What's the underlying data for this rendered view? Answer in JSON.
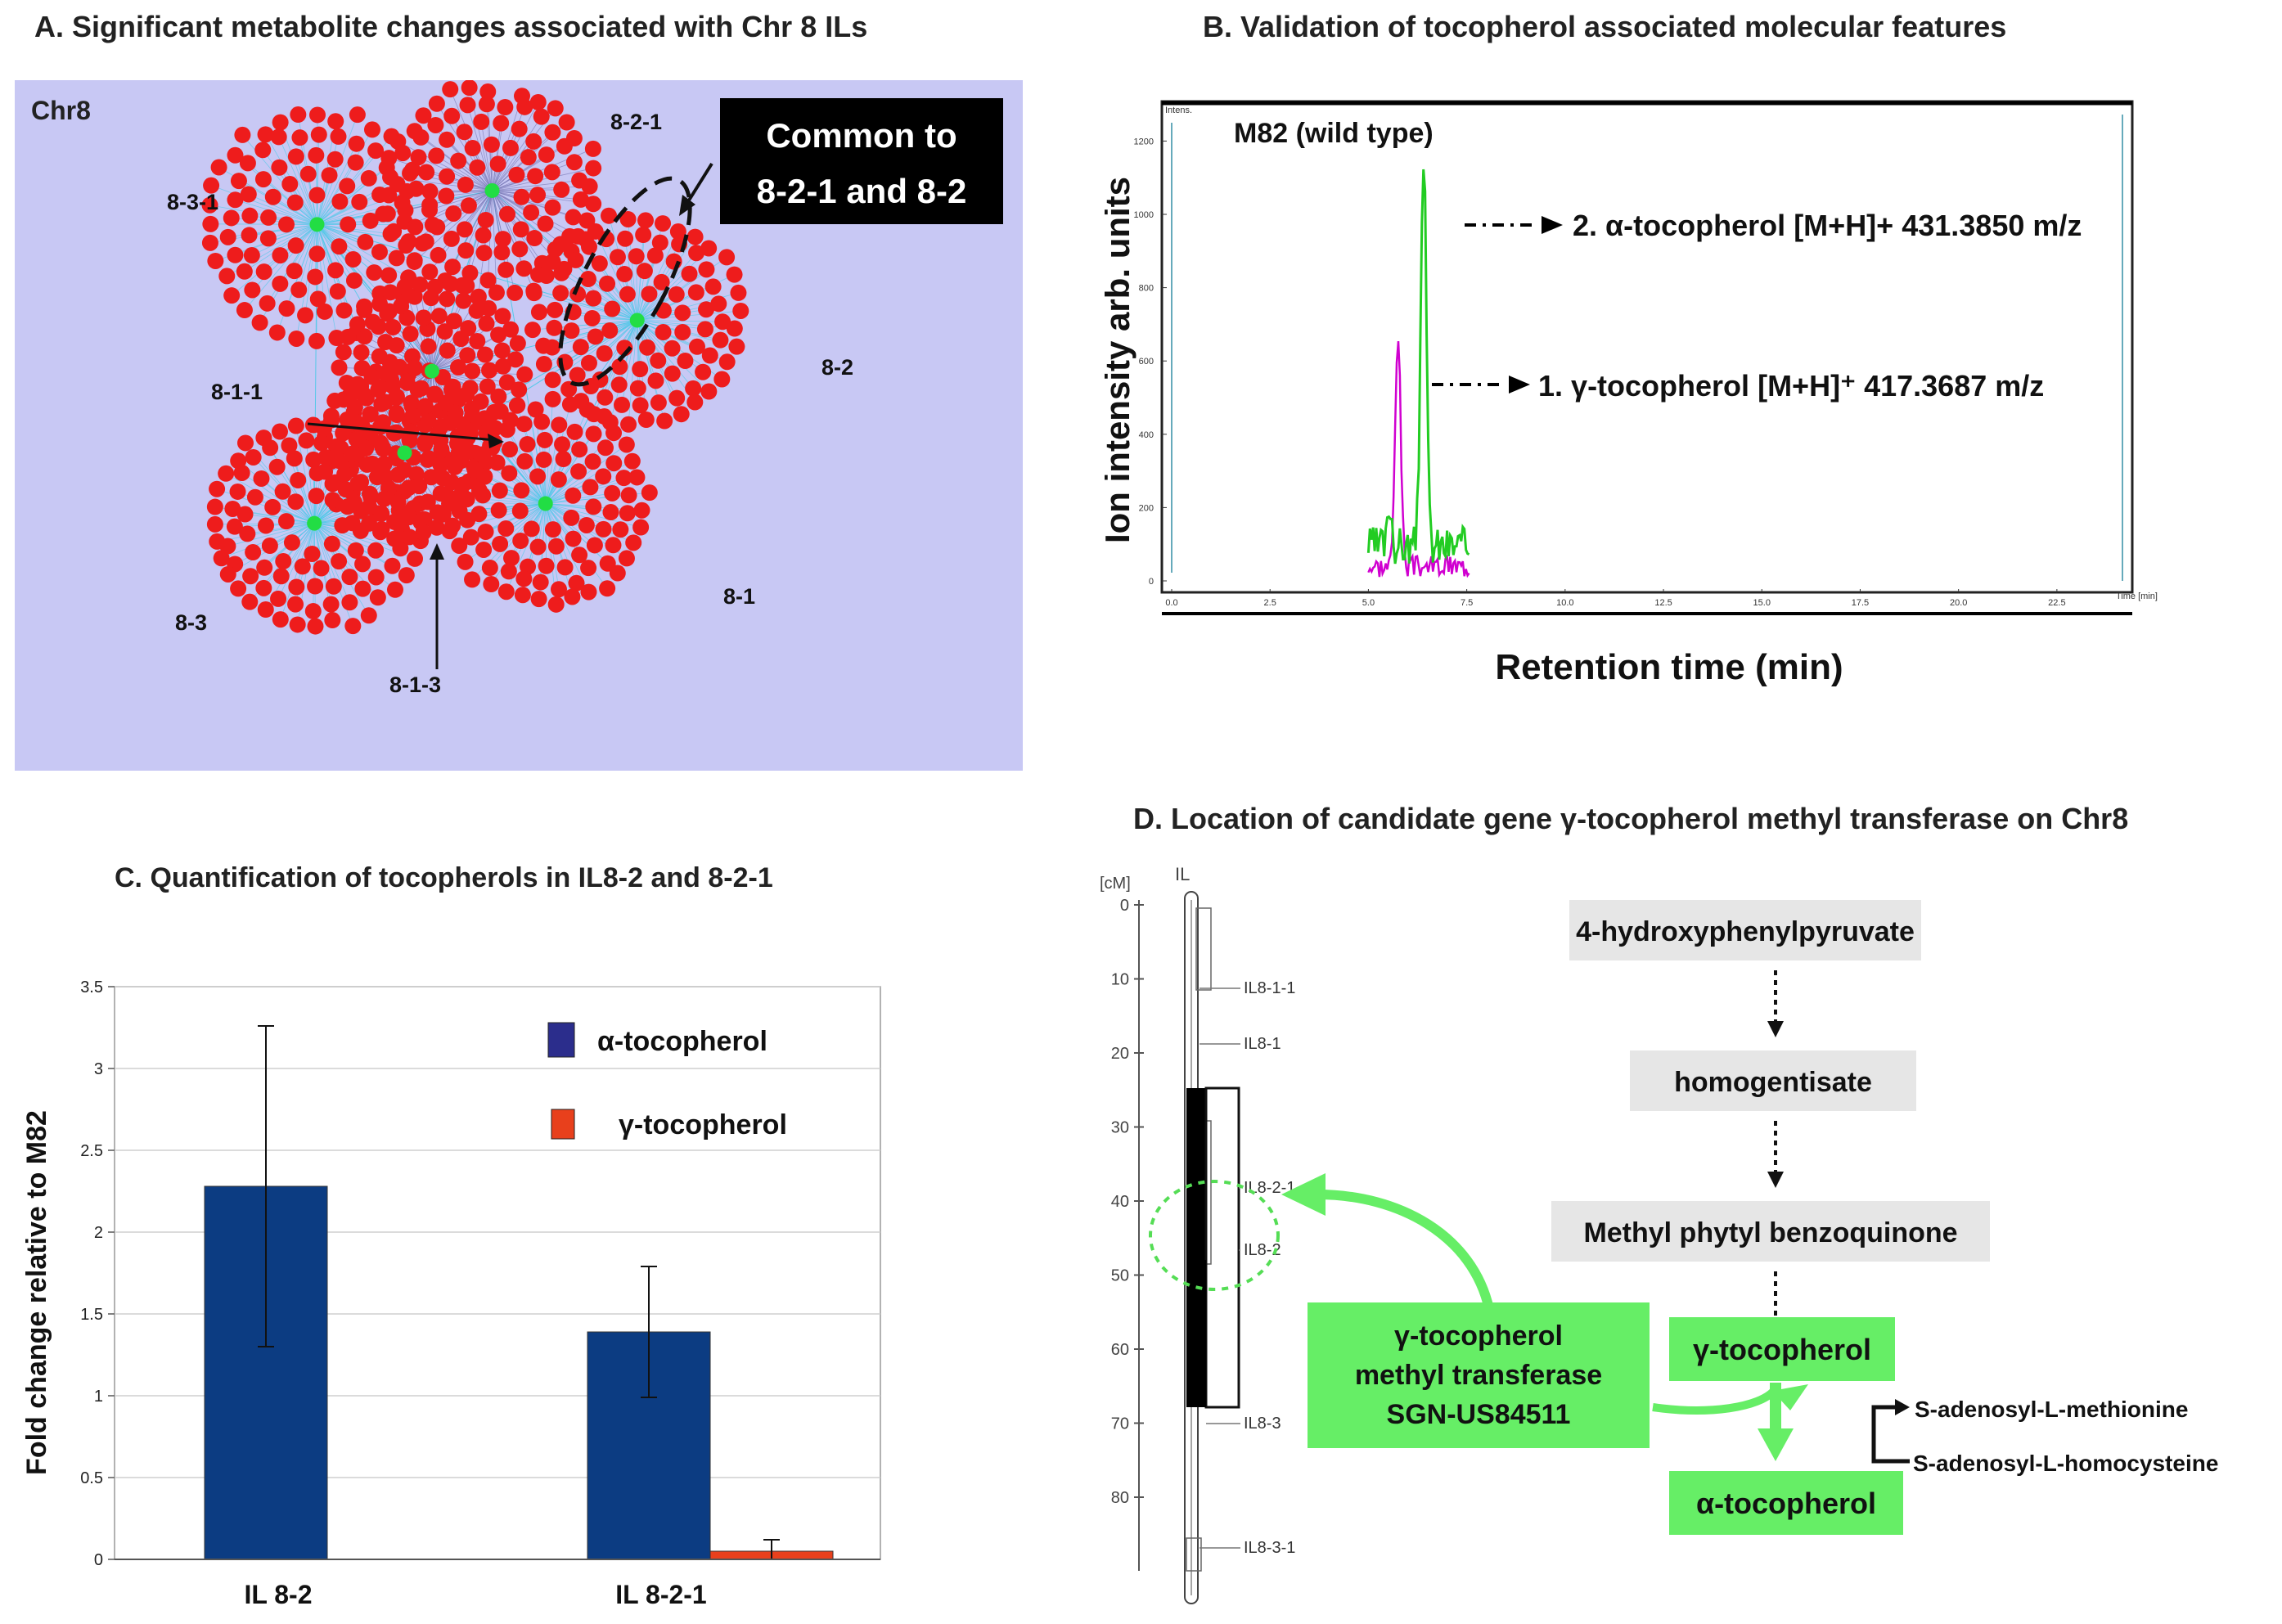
{
  "panels": {
    "a": {
      "title": "A.  Significant metabolite changes associated with Chr 8 ILs"
    },
    "b": {
      "title": "B.  Validation of tocopherol associated molecular features"
    },
    "c": {
      "title": "C.  Quantification of tocopherols  in IL8-2 and 8-2-1"
    },
    "d": {
      "title": "D.  Location of candidate gene γ-tocopherol methyl transferase on Chr8"
    }
  },
  "network": {
    "chromosome_label": "Chr8",
    "callout": {
      "line1": "Common to",
      "line2": "8-2-1 and 8-2"
    },
    "hubs": [
      {
        "label": "8-3-1"
      },
      {
        "label": "8-2-1"
      },
      {
        "label": "8-2"
      },
      {
        "label": "8-1-1"
      },
      {
        "label": "8-3"
      },
      {
        "label": "8-1-3"
      },
      {
        "label": "8-1"
      }
    ],
    "colors": {
      "background": "#c8c8f4",
      "node": "#ee1c1c",
      "hub": "#22dd44",
      "edge": "#55c8e8"
    }
  },
  "chromatogram": {
    "sample": "M82 (wild type)",
    "ylabel": "Ion intensity arb. units",
    "xlabel": "Retention time (min)",
    "x_ticks": [
      "0.0",
      "2.5",
      "5.0",
      "7.5",
      "10.0",
      "12.5",
      "15.0",
      "17.5",
      "20.0",
      "22.5"
    ],
    "x_unit": "Time [min]",
    "y_ticks": [
      "0",
      "200",
      "400",
      "600",
      "800",
      "1000",
      "1200"
    ],
    "y_unit": "Intens.",
    "peak_labels": [
      {
        "prefix": "2.",
        "compound": "α-tocopherol",
        "ion": "[M+H]+",
        "mz": "431.3850  m/z",
        "color": "#22cc22"
      },
      {
        "prefix": "1.",
        "compound": "γ-tocopherol",
        "ion": "[M+H]⁺",
        "mz": "417.3687  m/z",
        "color": "#d000d0"
      }
    ]
  },
  "chart_data": {
    "type": "bar",
    "title": "C.  Quantification of tocopherols  in IL8-2 and 8-2-1",
    "categories": [
      "IL 8-2",
      "IL 8-2-1"
    ],
    "series": [
      {
        "name": "α-tocopherol",
        "color": "#0c3c82",
        "values": [
          2.28,
          1.39
        ],
        "errors": [
          0.98,
          0.4
        ]
      },
      {
        "name": "γ-tocopherol",
        "color": "#e8401c",
        "values": [
          0.0,
          0.05
        ],
        "errors": [
          0.0,
          0.07
        ]
      }
    ],
    "ylabel": "Fold change relative to M82",
    "xlabel": "",
    "ylim": [
      0,
      3.5
    ],
    "y_ticks": [
      "0",
      "0.5",
      "1",
      "1.5",
      "2",
      "2.5",
      "3",
      "3.5"
    ],
    "grid": true,
    "legend": "top-right"
  },
  "genome_map": {
    "unit_label": "[cM]",
    "track_label": "IL",
    "scale": [
      "0",
      "10",
      "20",
      "30",
      "40",
      "50",
      "60",
      "70",
      "80"
    ],
    "ils": [
      "IL8-1-1",
      "IL8-1",
      "IL8-2-1",
      "IL8-2",
      "IL8-3",
      "IL8-3-1"
    ]
  },
  "pathway": {
    "steps": [
      "4-hydroxyphenylpyruvate",
      "homogentisate",
      "Methyl phytyl benzoquinone",
      "γ-tocopherol",
      "α-tocopherol"
    ],
    "enzyme": {
      "line1": "γ-tocopherol",
      "line2": "methyl transferase",
      "line3": "SGN-US84511"
    },
    "cofactor_in": "S-adenosyl-L-methionine",
    "cofactor_out": "S-adenosyl-L-homocysteine",
    "colors": {
      "grey_box": "#e6e6e6",
      "green_box": "#66ee66",
      "arrow_green": "#66ee66"
    }
  }
}
